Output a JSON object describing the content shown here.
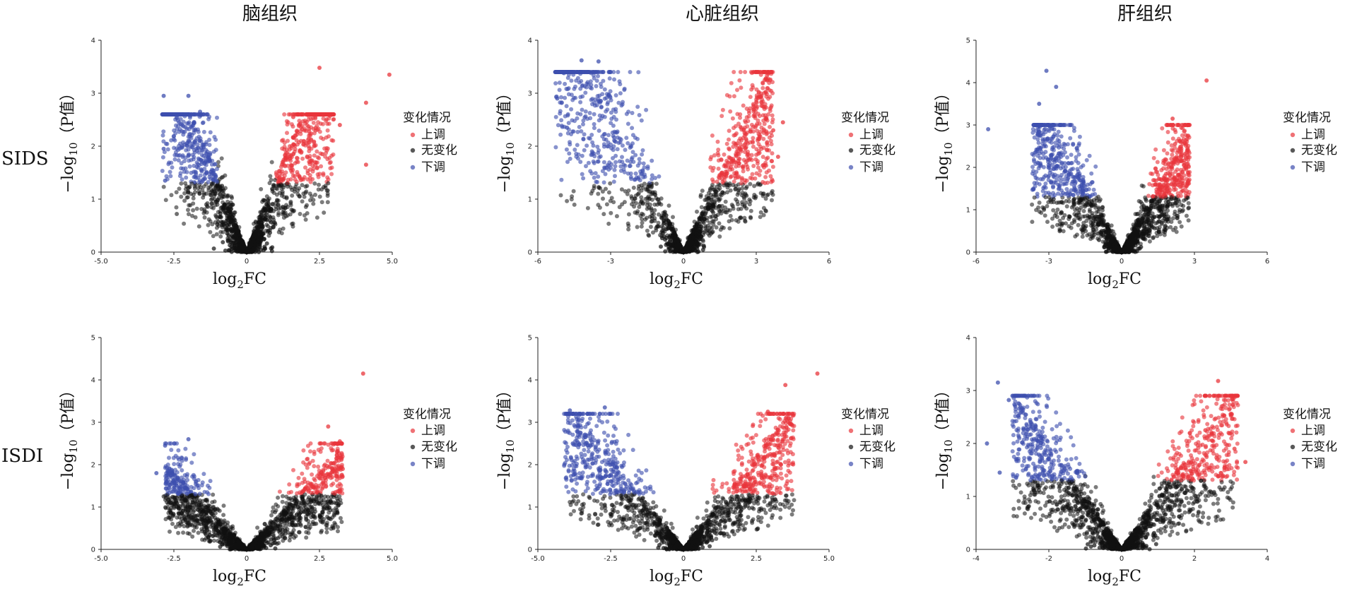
{
  "figure": {
    "column_titles": [
      "脑组织",
      "心脏组织",
      "肝组织"
    ],
    "row_labels": [
      "SIDS",
      "ISDI"
    ],
    "x_axis_title": {
      "base": "log",
      "sub": "2",
      "rest": "FC"
    },
    "y_axis_title": {
      "lead": "−log",
      "sub": "10",
      "rest": "（P值）"
    },
    "legend": {
      "title": "变化情况",
      "items": [
        {
          "label": "上调",
          "color": "#e8353b"
        },
        {
          "label": "无变化",
          "color": "#111111"
        },
        {
          "label": "下调",
          "color": "#3e4fae"
        }
      ]
    },
    "colors": {
      "up": "#e8353b",
      "none": "#111111",
      "down": "#3e4fae"
    }
  },
  "chart_data": [
    {
      "type": "scatter",
      "row": "SIDS",
      "column": "脑组织",
      "xlim": [
        -5.0,
        5.0
      ],
      "ylim": [
        0,
        4
      ],
      "xticks": [
        -5.0,
        -2.5,
        0,
        2.5,
        5.0
      ],
      "xtick_labels": [
        "-5.0",
        "-2.5",
        "0",
        "2.5",
        "5.0"
      ],
      "yticks": [
        0,
        1,
        2,
        3,
        4
      ],
      "ytick_labels": [
        "0",
        "1",
        "2",
        "3",
        "4"
      ],
      "threshold_y": 1.3,
      "v_slope": 1.35,
      "x_left_max": 2.9,
      "x_right_max": 3.0,
      "y_peak": 2.6,
      "outliers_up": [
        [
          2.5,
          3.48
        ],
        [
          4.9,
          3.35
        ],
        [
          4.1,
          2.82
        ],
        [
          3.2,
          2.4
        ],
        [
          4.1,
          1.65
        ],
        [
          2.6,
          1.85
        ],
        [
          1.6,
          2.55
        ]
      ],
      "outliers_down": [
        [
          -2.85,
          2.95
        ],
        [
          -2.0,
          2.95
        ],
        [
          -1.6,
          2.65
        ],
        [
          -2.85,
          1.95
        ],
        [
          -2.8,
          1.35
        ]
      ],
      "outliers_none": [
        [
          -2.4,
          0.72
        ],
        [
          2.8,
          1.3
        ]
      ]
    },
    {
      "type": "scatter",
      "row": "SIDS",
      "column": "心脏组织",
      "xlim": [
        -6,
        6
      ],
      "ylim": [
        0,
        4
      ],
      "xticks": [
        -6,
        -3,
        0,
        3,
        6
      ],
      "xtick_labels": [
        "-6",
        "-3",
        "0",
        "3",
        "6"
      ],
      "yticks": [
        0,
        1,
        2,
        3,
        4
      ],
      "ytick_labels": [
        "0",
        "1",
        "2",
        "3",
        "4"
      ],
      "threshold_y": 1.3,
      "v_slope": 0.95,
      "x_left_max": 5.3,
      "x_right_max": 3.7,
      "y_peak": 3.4,
      "outliers_up": [
        [
          3.4,
          3.28
        ],
        [
          3.7,
          2.3
        ],
        [
          4.1,
          2.45
        ],
        [
          3.9,
          1.8
        ]
      ],
      "outliers_down": [
        [
          -4.2,
          3.62
        ],
        [
          -3.5,
          3.6
        ],
        [
          -5.2,
          2.9
        ],
        [
          -4.8,
          2.35
        ]
      ],
      "outliers_none": []
    },
    {
      "type": "scatter",
      "row": "SIDS",
      "column": "肝组织",
      "xlim": [
        -6,
        6
      ],
      "ylim": [
        0,
        5
      ],
      "xticks": [
        -6,
        -3,
        0,
        3,
        6
      ],
      "xtick_labels": [
        "-6",
        "-3",
        "0",
        "3",
        "6"
      ],
      "yticks": [
        0,
        1,
        2,
        3,
        4,
        5
      ],
      "ytick_labels": [
        "0",
        "1",
        "2",
        "3",
        "4",
        "5"
      ],
      "threshold_y": 1.3,
      "v_slope": 1.0,
      "x_left_max": 3.7,
      "x_right_max": 2.8,
      "y_peak": 3.0,
      "outliers_up": [
        [
          3.5,
          4.05
        ],
        [
          2.1,
          3.15
        ],
        [
          2.2,
          2.55
        ]
      ],
      "outliers_down": [
        [
          -3.1,
          4.28
        ],
        [
          -2.7,
          3.9
        ],
        [
          -5.5,
          2.9
        ],
        [
          -3.4,
          3.5
        ]
      ],
      "outliers_none": [
        [
          -3.2,
          1.0
        ],
        [
          -2.8,
          1.25
        ]
      ]
    },
    {
      "type": "scatter",
      "row": "ISDI",
      "column": "脑组织",
      "xlim": [
        -5.0,
        5.0
      ],
      "ylim": [
        0,
        5
      ],
      "xticks": [
        -5.0,
        -2.5,
        0,
        2.5,
        5.0
      ],
      "xtick_labels": [
        "-5.0",
        "-2.5",
        "0",
        "2.5",
        "5.0"
      ],
      "yticks": [
        0,
        1,
        2,
        3,
        4,
        5
      ],
      "ytick_labels": [
        "0",
        "1",
        "2",
        "3",
        "4",
        "5"
      ],
      "threshold_y": 1.3,
      "v_slope": 0.7,
      "x_left_max": 2.8,
      "x_right_max": 3.3,
      "y_peak": 2.5,
      "outliers_up": [
        [
          4.0,
          4.15
        ],
        [
          2.8,
          2.9
        ],
        [
          3.2,
          2.55
        ],
        [
          3.3,
          1.9
        ]
      ],
      "outliers_down": [
        [
          -2.0,
          2.6
        ],
        [
          -2.8,
          2.45
        ],
        [
          -3.1,
          1.8
        ]
      ],
      "outliers_none": [
        [
          -2.85,
          1.25
        ]
      ]
    },
    {
      "type": "scatter",
      "row": "ISDI",
      "column": "心脏组织",
      "xlim": [
        -5.0,
        5.0
      ],
      "ylim": [
        0,
        5
      ],
      "xticks": [
        -5.0,
        -2.5,
        0,
        2.5,
        5.0
      ],
      "xtick_labels": [
        "-5.0",
        "-2.5",
        "0",
        "2.5",
        "5.0"
      ],
      "yticks": [
        0,
        1,
        2,
        3,
        4,
        5
      ],
      "ytick_labels": [
        "0",
        "1",
        "2",
        "3",
        "4",
        "5"
      ],
      "threshold_y": 1.3,
      "v_slope": 0.85,
      "x_left_max": 4.1,
      "x_right_max": 3.8,
      "y_peak": 3.2,
      "outliers_up": [
        [
          4.6,
          4.15
        ],
        [
          3.5,
          3.88
        ],
        [
          2.9,
          3.25
        ],
        [
          3.7,
          2.95
        ]
      ],
      "outliers_down": [
        [
          -3.9,
          3.28
        ],
        [
          -2.7,
          3.35
        ],
        [
          -3.8,
          2.5
        ]
      ],
      "outliers_none": []
    },
    {
      "type": "scatter",
      "row": "ISDI",
      "column": "肝组织",
      "xlim": [
        -4,
        4
      ],
      "ylim": [
        0,
        4
      ],
      "xticks": [
        -4,
        -2,
        0,
        2,
        4
      ],
      "xtick_labels": [
        "-4",
        "-2",
        "0",
        "2",
        "4"
      ],
      "yticks": [
        0,
        1,
        2,
        3,
        4
      ],
      "ytick_labels": [
        "0",
        "1",
        "2",
        "3",
        "4"
      ],
      "threshold_y": 1.3,
      "v_slope": 0.95,
      "x_left_max": 3.0,
      "x_right_max": 3.2,
      "y_peak": 2.9,
      "outliers_up": [
        [
          2.65,
          3.18
        ],
        [
          2.3,
          2.25
        ],
        [
          3.4,
          1.65
        ],
        [
          3.1,
          1.9
        ]
      ],
      "outliers_down": [
        [
          -3.4,
          3.15
        ],
        [
          -3.1,
          2.82
        ],
        [
          -3.7,
          2.0
        ],
        [
          -3.35,
          1.45
        ]
      ],
      "outliers_none": [
        [
          2.1,
          1.0
        ]
      ]
    }
  ]
}
